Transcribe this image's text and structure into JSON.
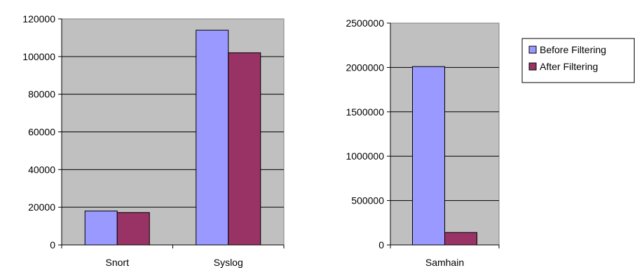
{
  "colors": {
    "before": "#9999ff",
    "after": "#993366",
    "plot_bg": "#c0c0c0"
  },
  "legend": {
    "placement": "right",
    "items": [
      {
        "label": "Before Filtering",
        "color": "#9999ff"
      },
      {
        "label": "After Filtering",
        "color": "#993366"
      }
    ]
  },
  "chart_data": [
    {
      "type": "bar",
      "categories": [
        "Snort",
        "Syslog"
      ],
      "series": [
        {
          "name": "Before Filtering",
          "values": [
            18000,
            114000
          ]
        },
        {
          "name": "After Filtering",
          "values": [
            17200,
            102000
          ]
        }
      ],
      "ylim": [
        0,
        120000
      ],
      "yticks": [
        "0",
        "20000",
        "40000",
        "60000",
        "80000",
        "100000",
        "120000"
      ],
      "grid": true
    },
    {
      "type": "bar",
      "categories": [
        "Samhain"
      ],
      "series": [
        {
          "name": "Before Filtering",
          "values": [
            2010000
          ]
        },
        {
          "name": "After Filtering",
          "values": [
            140000
          ]
        }
      ],
      "ylim": [
        0,
        2500000
      ],
      "yticks": [
        "0",
        "500000",
        "1000000",
        "1500000",
        "2000000",
        "2500000"
      ],
      "grid": true
    }
  ]
}
